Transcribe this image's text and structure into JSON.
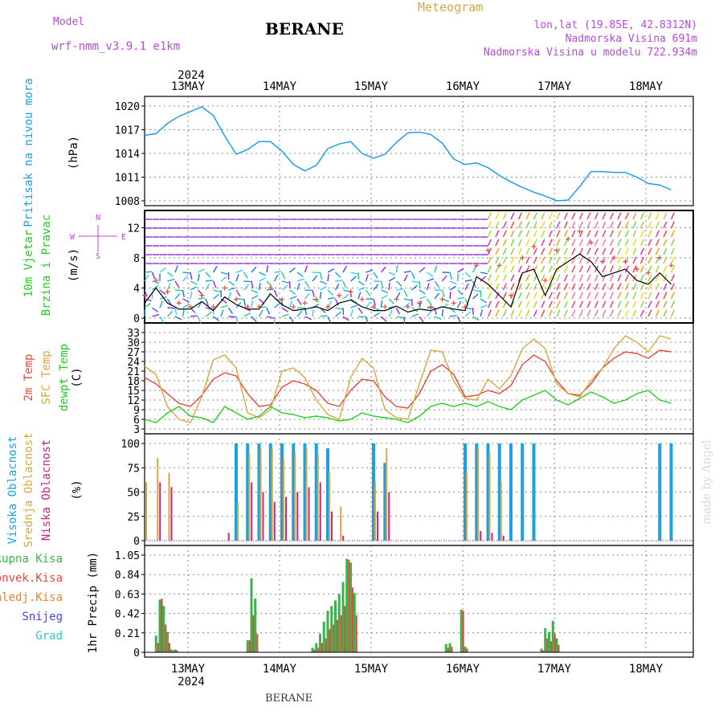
{
  "header": {
    "model_label": "Model",
    "model_name": "wrf-nmm_v3.9.1  e1km",
    "station": "BERANE",
    "meteogram": "Meteogram",
    "lonlat": "lon,lat (19.85E, 42.8312N)",
    "elev": "Nadmorska Visina 691m",
    "elev_model": "Nadmorska Visina u modelu 722.934m",
    "watermark": "made by Angel",
    "footer_station": "BERANE"
  },
  "colors": {
    "pressure": "#1ba1e2",
    "temp2m": "#e8463c",
    "sfc": "#d9a83c",
    "dewpt": "#22cc22",
    "high_cloud": "#1ba1e2",
    "mid_cloud": "#d9a83c",
    "low_cloud": "#cc2288",
    "precip_total": "#3bb34a",
    "precip_conv": "#e8463c",
    "precip_frozen": "#f08030",
    "precip_snow": "#4444ee",
    "precip_grad": "#22cccc",
    "wind_purple": "#8a2be2",
    "magenta": "#b84adb"
  },
  "axis": {
    "date_labels": [
      "13MAY",
      "14MAY",
      "15MAY",
      "16MAY",
      "17MAY",
      "18MAY"
    ],
    "year_label": "2024"
  },
  "chart_data": [
    {
      "type": "line",
      "ylabel": [
        "Pritisak na nivou mora",
        "(hPa)"
      ],
      "ylim": [
        1008,
        1020
      ],
      "yticks": [
        1008,
        1011,
        1014,
        1017,
        1020
      ],
      "x_hours": [
        0,
        3,
        6,
        9,
        12,
        15,
        18,
        21,
        24,
        27,
        30,
        33,
        36,
        39,
        42,
        45,
        48,
        51,
        54,
        57,
        60,
        63,
        66,
        69,
        72,
        75,
        78,
        81,
        84,
        87,
        90,
        93,
        96,
        99,
        102,
        105,
        108,
        111,
        114,
        117,
        120,
        123,
        126,
        129,
        132,
        135,
        138
      ],
      "series": [
        {
          "values": [
            1016.3,
            1016.5,
            1017.8,
            1018.7,
            1019.3,
            1019.9,
            1018.8,
            1016.2,
            1013.9,
            1014.5,
            1015.5,
            1015.5,
            1014.3,
            1012.6,
            1011.8,
            1012.5,
            1014.6,
            1015.2,
            1015.5,
            1014.0,
            1013.4,
            1013.9,
            1015.4,
            1016.6,
            1016.7,
            1016.4,
            1015.3,
            1013.3,
            1012.6,
            1012.8,
            1012.2,
            1011.2,
            1010.4,
            1009.7,
            1009.1,
            1008.6,
            1008.0,
            1008.1,
            1009.8,
            1011.7,
            1011.7,
            1011.6,
            1011.6,
            1011.0,
            1010.2,
            1010.0,
            1009.4
          ]
        }
      ]
    },
    {
      "type": "line",
      "ylabel": [
        "10m Vjetar",
        "Brzina i Pravac",
        "(m/s)"
      ],
      "ylim": [
        0,
        13
      ],
      "yticks": [
        0,
        4,
        8,
        12
      ],
      "compass": [
        "N",
        "W",
        "E",
        "S"
      ],
      "x_hours": [
        0,
        3,
        6,
        9,
        12,
        15,
        18,
        21,
        24,
        27,
        30,
        33,
        36,
        39,
        42,
        45,
        48,
        51,
        54,
        57,
        60,
        63,
        66,
        69,
        72,
        75,
        78,
        81,
        84,
        87,
        90,
        93,
        96,
        99,
        102,
        105,
        108,
        111,
        114,
        117,
        120,
        123,
        126,
        129,
        132,
        135,
        138
      ],
      "series": [
        {
          "values": [
            2.0,
            4.0,
            2.0,
            1.2,
            1.2,
            2.2,
            1.0,
            2.8,
            1.8,
            1.2,
            1.2,
            3.2,
            1.8,
            1.0,
            1.2,
            1.5,
            1.0,
            2.0,
            2.4,
            1.5,
            1.0,
            1.0,
            1.6,
            0.8,
            1.2,
            1.0,
            1.5,
            1.2,
            1.0,
            5.5,
            4.5,
            3.0,
            1.5,
            6.0,
            6.5,
            3.0,
            6.5,
            7.5,
            8.5,
            7.5,
            5.5,
            6.0,
            6.5,
            5.0,
            4.5,
            6.0,
            4.5
          ]
        },
        {
          "values": [
            3.0,
            5.0,
            3.5,
            2.0,
            1.5,
            3.0,
            1.5,
            4.0,
            2.5,
            1.5,
            1.5,
            4.0,
            2.5,
            1.5,
            2.0,
            2.5,
            1.5,
            3.0,
            3.5,
            2.5,
            1.5,
            1.5,
            2.5,
            1.5,
            2.0,
            1.5,
            2.5,
            2.0,
            1.5,
            7.0,
            9.0,
            7.0,
            3.0,
            8.0,
            9.5,
            5.0,
            9.0,
            10.5,
            11.5,
            10.0,
            7.5,
            8.0,
            7.5,
            6.5,
            6.0,
            8.0,
            7.0
          ]
        }
      ]
    },
    {
      "type": "line",
      "ylabel": [
        "2m Temp",
        "SFC Temp",
        "dewpt Temp",
        "(C)"
      ],
      "ylim": [
        3,
        33
      ],
      "yticks": [
        3,
        6,
        9,
        12,
        15,
        18,
        21,
        24,
        27,
        30,
        33
      ],
      "x_hours": [
        0,
        3,
        6,
        9,
        12,
        15,
        18,
        21,
        24,
        27,
        30,
        33,
        36,
        39,
        42,
        45,
        48,
        51,
        54,
        57,
        60,
        63,
        66,
        69,
        72,
        75,
        78,
        81,
        84,
        87,
        90,
        93,
        96,
        99,
        102,
        105,
        108,
        111,
        114,
        117,
        120,
        123,
        126,
        129,
        132,
        135,
        138
      ],
      "series": [
        {
          "name": "2m Temp",
          "values": [
            19.0,
            17.0,
            14.0,
            11.0,
            10.0,
            13.5,
            18.5,
            20.5,
            19.5,
            14.0,
            10.0,
            10.5,
            16.0,
            18.0,
            17.0,
            15.0,
            11.0,
            10.0,
            15.0,
            18.5,
            18.0,
            13.0,
            10.0,
            9.5,
            14.0,
            21.0,
            23.0,
            20.0,
            13.0,
            13.5,
            15.0,
            14.0,
            16.5,
            23.0,
            26.0,
            24.0,
            18.0,
            14.0,
            13.5,
            17.0,
            22.0,
            25.0,
            27.0,
            26.5,
            25.0,
            27.5,
            27.0
          ]
        },
        {
          "name": "SFC Temp",
          "values": [
            22.5,
            20.0,
            10.0,
            6.0,
            5.0,
            13.0,
            24.5,
            26.0,
            22.0,
            8.0,
            6.5,
            9.0,
            21.0,
            22.0,
            19.0,
            12.0,
            7.5,
            6.0,
            19.0,
            25.0,
            22.0,
            9.0,
            6.5,
            6.0,
            17.0,
            27.5,
            27.0,
            18.0,
            12.5,
            12.0,
            18.5,
            15.5,
            19.5,
            28.0,
            31.0,
            28.0,
            17.0,
            14.0,
            13.0,
            18.0,
            22.0,
            28.0,
            32.0,
            30.0,
            27.0,
            32.0,
            31.0
          ]
        },
        {
          "name": "dewpt Temp",
          "values": [
            6.0,
            5.0,
            8.0,
            10.0,
            7.0,
            6.5,
            5.0,
            10.0,
            8.0,
            6.0,
            7.0,
            10.0,
            8.0,
            7.5,
            6.5,
            7.0,
            6.5,
            5.5,
            6.0,
            8.0,
            7.0,
            6.5,
            6.0,
            5.0,
            7.0,
            10.0,
            11.0,
            10.0,
            11.0,
            10.0,
            11.5,
            10.0,
            9.0,
            12.0,
            13.5,
            15.0,
            12.0,
            10.5,
            12.5,
            14.5,
            13.0,
            11.0,
            12.0,
            14.0,
            15.0,
            12.0,
            11.0
          ]
        }
      ]
    },
    {
      "type": "bar",
      "ylabel": [
        "Visoka Oblacnost",
        "Srednja Oblacnost",
        "Niska Oblacnost",
        "(%)"
      ],
      "ylim": [
        0,
        100
      ],
      "yticks": [
        0,
        25,
        50,
        75,
        100
      ],
      "x_hours": [
        0,
        3,
        6,
        9,
        12,
        15,
        18,
        21,
        24,
        27,
        30,
        33,
        36,
        39,
        42,
        45,
        48,
        51,
        54,
        57,
        60,
        63,
        66,
        69,
        72,
        75,
        78,
        81,
        84,
        87,
        90,
        93,
        96,
        99,
        102,
        105,
        108,
        111,
        114,
        117,
        120,
        123,
        126,
        129,
        132,
        135,
        138
      ],
      "series": [
        {
          "name": "Visoka",
          "values": [
            0,
            0,
            0,
            0,
            0,
            0,
            0,
            0,
            100,
            100,
            100,
            100,
            100,
            100,
            100,
            100,
            95,
            0,
            0,
            0,
            100,
            80,
            0,
            0,
            0,
            0,
            0,
            0,
            100,
            100,
            100,
            100,
            100,
            100,
            100,
            0,
            0,
            0,
            0,
            0,
            0,
            0,
            0,
            0,
            0,
            100,
            100
          ]
        },
        {
          "name": "Srednja",
          "values": [
            60,
            85,
            70,
            0,
            0,
            0,
            0,
            0,
            40,
            90,
            95,
            95,
            85,
            90,
            95,
            90,
            70,
            35,
            0,
            0,
            60,
            95,
            0,
            0,
            0,
            0,
            0,
            0,
            70,
            95,
            90,
            60,
            0,
            0,
            0,
            0,
            0,
            0,
            0,
            0,
            0,
            0,
            0,
            0,
            0,
            0,
            0
          ]
        },
        {
          "name": "Niska",
          "values": [
            0,
            60,
            55,
            0,
            0,
            0,
            0,
            8,
            0,
            60,
            50,
            40,
            45,
            50,
            55,
            60,
            30,
            5,
            0,
            0,
            30,
            50,
            0,
            0,
            0,
            0,
            0,
            0,
            0,
            10,
            8,
            5,
            0,
            0,
            0,
            0,
            0,
            0,
            0,
            0,
            0,
            0,
            0,
            0,
            0,
            0,
            0
          ]
        }
      ]
    },
    {
      "type": "bar",
      "ylabel": [
        "1hr Precip (mm)"
      ],
      "legend": [
        "Ukupna Kisa",
        "Konvek.Kisa",
        "Zaledj.Kisa",
        "Snijeg",
        "Grad"
      ],
      "ylim": [
        0,
        1.05
      ],
      "yticks": [
        0,
        0.21,
        0.42,
        0.63,
        0.84,
        1.05
      ],
      "x_hours": [
        3,
        4,
        5,
        6,
        7,
        8,
        27,
        28,
        29,
        30,
        44,
        45,
        46,
        47,
        48,
        49,
        50,
        51,
        52,
        53,
        54,
        55,
        56,
        57,
        58,
        79,
        80,
        81,
        82,
        83,
        84,
        104,
        105,
        106,
        107,
        108
      ],
      "series": [
        {
          "name": "Ukupna Kisa",
          "values": [
            0.18,
            0.57,
            0.5,
            0.22,
            0.03,
            0.03,
            0.13,
            0.8,
            0.58,
            0.0,
            0.05,
            0.1,
            0.2,
            0.33,
            0.45,
            0.5,
            0.56,
            0.63,
            0.76,
            1.01,
            0.97,
            0.64,
            0.0,
            0.0,
            0.0,
            0.09,
            0.1,
            0.0,
            0.0,
            0.46,
            0.06,
            0.04,
            0.26,
            0.22,
            0.34,
            0.15
          ]
        },
        {
          "name": "Konvek.Kisa",
          "values": [
            0.1,
            0.58,
            0.3,
            0.1,
            0.02,
            0.02,
            0.13,
            0.4,
            0.2,
            0.0,
            0.03,
            0.05,
            0.1,
            0.15,
            0.25,
            0.3,
            0.35,
            0.4,
            0.5,
            1.0,
            0.7,
            0.4,
            0.0,
            0.0,
            0.0,
            0.05,
            0.06,
            0.0,
            0.0,
            0.45,
            0.04,
            0.02,
            0.15,
            0.12,
            0.2,
            0.08
          ]
        }
      ]
    }
  ]
}
